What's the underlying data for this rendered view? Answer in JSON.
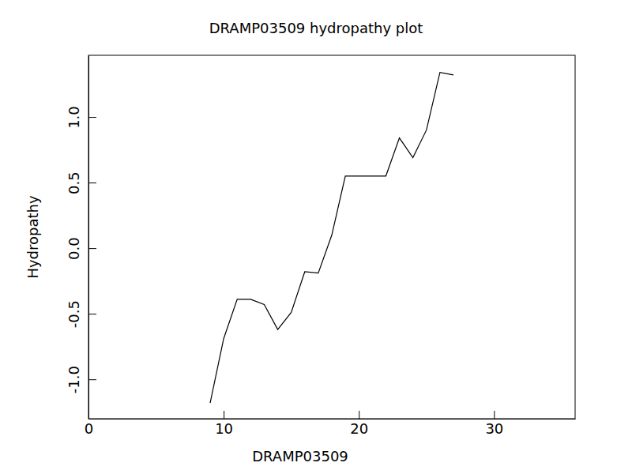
{
  "chart_data": {
    "type": "line",
    "title": "DRAMP03509 hydropathy plot",
    "x_label": "DRAMP03509",
    "y_label": "Hydropathy",
    "x": [
      9,
      10,
      11,
      12,
      13,
      14,
      15,
      16,
      17,
      18,
      19,
      20,
      21,
      22,
      23,
      24,
      25,
      26,
      27
    ],
    "values": [
      -1.18,
      -0.69,
      -0.39,
      -0.39,
      -0.43,
      -0.62,
      -0.49,
      -0.18,
      -0.19,
      0.1,
      0.55,
      0.55,
      0.55,
      0.55,
      0.84,
      0.69,
      0.9,
      1.34,
      1.32
    ],
    "color": "#000000",
    "xlim": [
      0,
      36
    ],
    "xticks": [
      0,
      10,
      20,
      30
    ],
    "ylim": [
      -1.3,
      1.47
    ],
    "yticks": [
      {
        "value": -1,
        "label": "-1.0"
      },
      {
        "value": -0.5,
        "label": "-0.5"
      },
      {
        "value": 0,
        "label": "0.0"
      },
      {
        "value": 0.5,
        "label": "0.5"
      },
      {
        "value": 1,
        "label": "1.0"
      }
    ],
    "grid": false
  }
}
